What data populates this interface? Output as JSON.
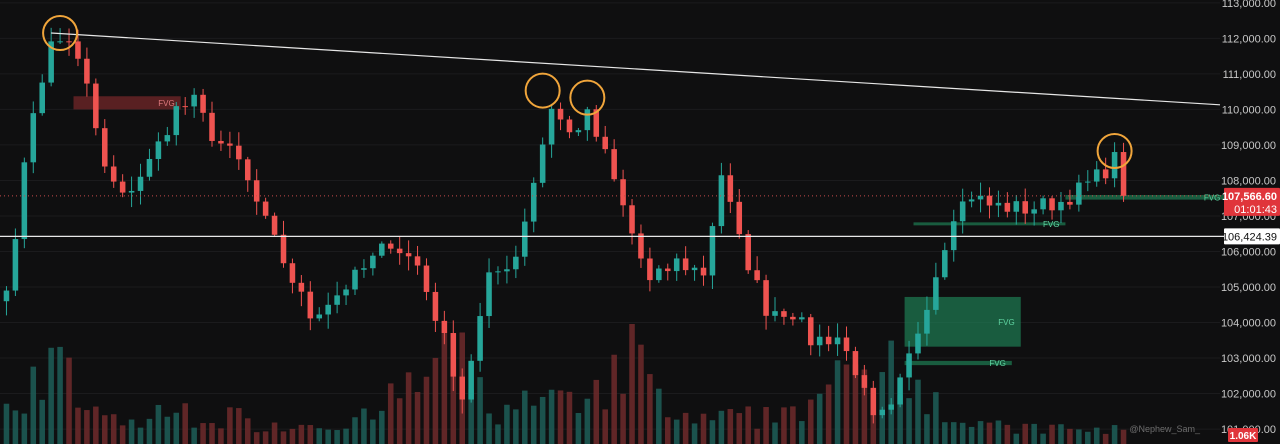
{
  "colors": {
    "background": "#0f0f10",
    "up": "#26a69a",
    "down": "#ef5350",
    "trendline": "#e6e6e6",
    "circle": "#f0a53b",
    "fvg_green": "#1f8f5f",
    "fvg_red": "#8b2b2f"
  },
  "chart_data": {
    "type": "candlestick",
    "y_axis": {
      "side": "right",
      "ticks": [
        "113,000.00",
        "112,000.00",
        "111,000.00",
        "110,000.00",
        "109,000.00",
        "108,000.00",
        "107,000.00",
        "106,000.00",
        "105,000.00",
        "104,000.00",
        "103,000.00",
        "102,000.00",
        "101,000.00"
      ],
      "tick_values": [
        113000,
        112000,
        111000,
        110000,
        109000,
        108000,
        107000,
        106000,
        105000,
        104000,
        103000,
        102000,
        101000
      ],
      "range": [
        100580,
        113080
      ]
    },
    "current_price": {
      "label": "107,566.60",
      "value": 107566.6,
      "countdown": "01:01:43"
    },
    "level_line": {
      "label": "106,424.39",
      "value": 106424.39
    },
    "volume_label": "1.06K",
    "watermark": "@Nephew_Sam_",
    "trendline": {
      "from_bar": 5,
      "from_price": 112150,
      "to_bar": 238,
      "to_price": 108550
    },
    "touch_points": [
      {
        "bar": 6,
        "price": 112150
      },
      {
        "bar": 60,
        "price": 110530
      },
      {
        "bar": 65,
        "price": 110330
      },
      {
        "bar": 124,
        "price": 108830
      }
    ],
    "fvg_zones": [
      {
        "label": "FVG",
        "type": "bearish",
        "bar_start": 8,
        "bar_end": 19,
        "top": 110370,
        "bottom": 110000
      },
      {
        "label": "FVG",
        "type": "bullish",
        "bar_start": 119,
        "bar_end": 136,
        "top": 107590,
        "bottom": 107460
      },
      {
        "label": "FVG",
        "type": "bullish",
        "bar_start": 102,
        "bar_end": 118,
        "top": 106820,
        "bottom": 106770
      },
      {
        "label": "FVG",
        "type": "bullish",
        "bar_start": 101,
        "bar_end": 113,
        "top": 104720,
        "bottom": 103320
      },
      {
        "label": "FVG",
        "type": "bullish",
        "bar_start": 101,
        "bar_end": 112,
        "top": 102920,
        "bottom": 102800
      }
    ],
    "keypoints": [
      [
        0,
        104900
      ],
      [
        3,
        110000
      ],
      [
        5,
        111800
      ],
      [
        7,
        112000
      ],
      [
        9,
        110600
      ],
      [
        11,
        108300
      ],
      [
        13,
        107500
      ],
      [
        16,
        108500
      ],
      [
        19,
        110000
      ],
      [
        21,
        110200
      ],
      [
        23,
        109300
      ],
      [
        26,
        108500
      ],
      [
        29,
        106800
      ],
      [
        32,
        105200
      ],
      [
        34,
        104200
      ],
      [
        37,
        104800
      ],
      [
        40,
        105500
      ],
      [
        43,
        106300
      ],
      [
        46,
        105600
      ],
      [
        49,
        103500
      ],
      [
        51,
        101900
      ],
      [
        54,
        105200
      ],
      [
        57,
        105900
      ],
      [
        59,
        108000
      ],
      [
        61,
        110100
      ],
      [
        63,
        109300
      ],
      [
        65,
        109800
      ],
      [
        67,
        108700
      ],
      [
        70,
        106500
      ],
      [
        72,
        105100
      ],
      [
        75,
        105700
      ],
      [
        78,
        105400
      ],
      [
        80,
        108200
      ],
      [
        82,
        106300
      ],
      [
        85,
        104400
      ],
      [
        88,
        104300
      ],
      [
        90,
        103500
      ],
      [
        93,
        103600
      ],
      [
        95,
        102700
      ],
      [
        97,
        101200
      ],
      [
        99,
        101500
      ],
      [
        101,
        103000
      ],
      [
        104,
        105400
      ],
      [
        106,
        107100
      ],
      [
        108,
        107600
      ],
      [
        110,
        107300
      ],
      [
        114,
        107200
      ],
      [
        118,
        107400
      ],
      [
        121,
        107900
      ],
      [
        123,
        108300
      ],
      [
        124,
        108600
      ],
      [
        125,
        107566
      ]
    ],
    "volume_profile": [
      [
        0,
        0.35
      ],
      [
        5,
        0.75
      ],
      [
        10,
        0.25
      ],
      [
        14,
        0.2
      ],
      [
        20,
        0.3
      ],
      [
        30,
        0.18
      ],
      [
        40,
        0.22
      ],
      [
        50,
        0.8
      ],
      [
        55,
        0.3
      ],
      [
        60,
        0.4
      ],
      [
        65,
        0.3
      ],
      [
        70,
        0.85
      ],
      [
        75,
        0.2
      ],
      [
        85,
        0.25
      ],
      [
        95,
        0.6
      ],
      [
        100,
        0.9
      ],
      [
        105,
        0.3
      ],
      [
        110,
        0.15
      ],
      [
        125,
        0.12
      ]
    ],
    "bars": 126
  }
}
